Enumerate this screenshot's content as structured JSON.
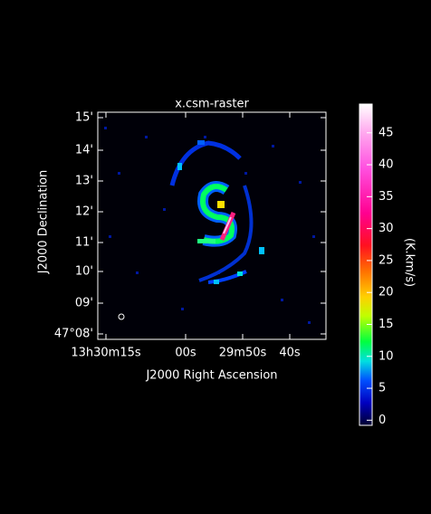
{
  "chart_data": {
    "type": "image",
    "title": "x.csm-raster",
    "x_label": "J2000 Right Ascension",
    "y_label": "J2000 Declination",
    "x_tick_labels": [
      "13h30m15s",
      "00s",
      "29m50s",
      "40s"
    ],
    "y_tick_labels": [
      "15'",
      "14'",
      "13'",
      "12'",
      "11'",
      "10'",
      "09'",
      "47°08'"
    ],
    "colorbar": {
      "label": "(K.km/s)",
      "lim": [
        -0.8,
        49.5
      ],
      "ticks": [
        0,
        5,
        10,
        15,
        20,
        25,
        30,
        35,
        40,
        45
      ]
    }
  }
}
